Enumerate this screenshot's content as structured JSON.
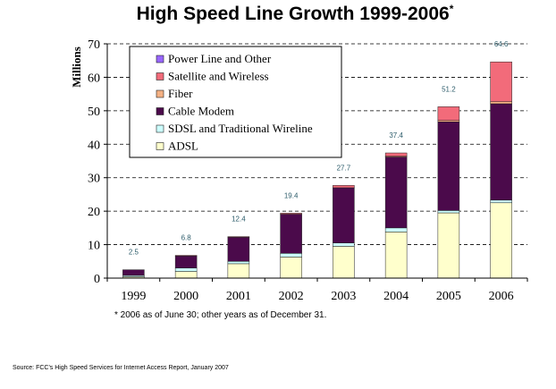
{
  "chart_data": {
    "type": "bar",
    "stacked": true,
    "title": "High Speed Line Growth 1999-2006",
    "title_marker": "*",
    "ylabel": "Millions",
    "xlabel": "",
    "ylim": [
      0,
      70
    ],
    "yticks": [
      0,
      10,
      20,
      30,
      40,
      50,
      60,
      70
    ],
    "grid": "horizontal dashed",
    "legend_position": "top-left",
    "categories": [
      "1999",
      "2000",
      "2001",
      "2002",
      "2003",
      "2004",
      "2005",
      "2006"
    ],
    "series": [
      {
        "name": "ADSL",
        "color": "#ffffcc",
        "values": [
          0.4,
          2.0,
          4.3,
          6.3,
          9.5,
          13.8,
          19.5,
          22.5
        ]
      },
      {
        "name": "SDSL and Traditional Wireline",
        "color": "#ccffff",
        "values": [
          0.4,
          1.0,
          0.7,
          1.1,
          1.0,
          1.2,
          0.7,
          0.8
        ]
      },
      {
        "name": "Cable Modem",
        "color": "#4b0a4b",
        "values": [
          1.7,
          3.6,
          7.2,
          11.7,
          16.5,
          21.2,
          26.5,
          28.8
        ]
      },
      {
        "name": "Fiber",
        "color": "#f4b183",
        "values": [
          0,
          0,
          0,
          0,
          0,
          0.2,
          0.4,
          0.6
        ]
      },
      {
        "name": "Satellite and Wireless",
        "color": "#f26b7a",
        "values": [
          0,
          0.2,
          0.2,
          0.3,
          0.7,
          1.0,
          4.1,
          11.9
        ]
      },
      {
        "name": "Power Line and Other",
        "color": "#9966ff",
        "values": [
          0,
          0,
          0,
          0,
          0,
          0,
          0,
          0
        ]
      }
    ],
    "totals": [
      "2.5",
      "6.8",
      "12.4",
      "19.4",
      "27.7",
      "37.4",
      "51.2",
      "64.6"
    ],
    "legend_order": [
      "Power Line and Other",
      "Satellite and Wireless",
      "Fiber",
      "Cable Modem",
      "SDSL and Traditional Wireline",
      "ADSL"
    ],
    "footnote": "* 2006 as of June 30; other years as of December 31.",
    "source": "Source: FCC's High Speed Services for Internet Access Report, January 2007"
  }
}
